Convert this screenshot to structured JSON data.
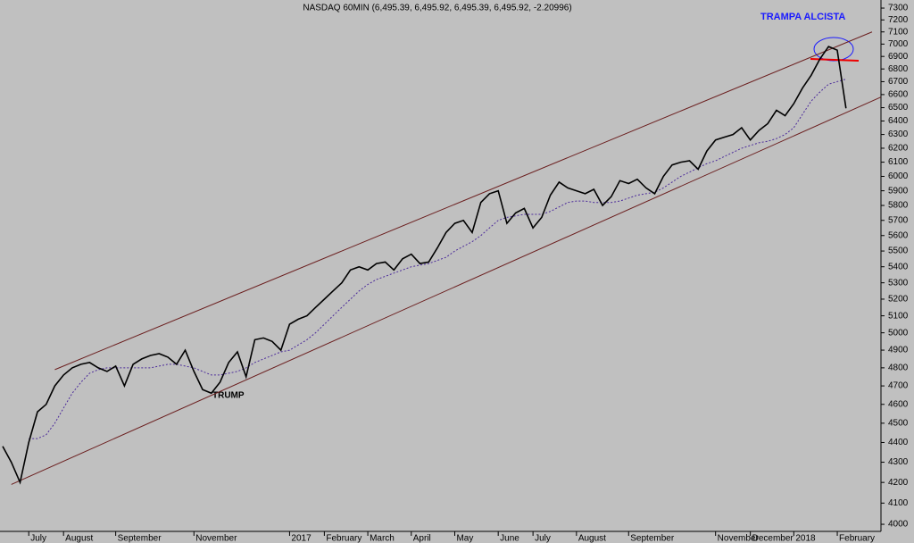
{
  "chart_data": {
    "type": "line",
    "title": "NASDAQ 60MIN (6,495.39, 6,495.92, 6,495.39, 6,495.92, -2.20996)",
    "annotations": [
      "TRAMPA ALCISTA",
      "TRUMP"
    ],
    "log_scale": true,
    "ylim": [
      3967,
      7369
    ],
    "yticks": [
      4000,
      4100,
      4200,
      4300,
      4400,
      4500,
      4600,
      4700,
      4800,
      4900,
      5000,
      5100,
      5200,
      5300,
      5400,
      5500,
      5600,
      5700,
      5800,
      5900,
      6000,
      6100,
      6200,
      6300,
      6400,
      6500,
      6600,
      6700,
      6800,
      6900,
      7000,
      7100,
      7200,
      7300
    ],
    "categories": [
      null,
      null,
      null,
      "July",
      null,
      null,
      null,
      "August",
      null,
      null,
      null,
      null,
      null,
      "September",
      null,
      null,
      null,
      null,
      null,
      null,
      null,
      null,
      "November",
      null,
      null,
      null,
      null,
      null,
      null,
      null,
      null,
      null,
      null,
      "2017",
      null,
      null,
      null,
      "February",
      null,
      null,
      null,
      null,
      "March",
      null,
      null,
      null,
      null,
      "April",
      null,
      null,
      null,
      null,
      "May",
      null,
      null,
      null,
      null,
      "June",
      null,
      null,
      null,
      "July",
      null,
      null,
      null,
      null,
      "August",
      null,
      null,
      null,
      null,
      null,
      "September",
      null,
      null,
      null,
      null,
      null,
      null,
      null,
      null,
      null,
      "November",
      null,
      null,
      null,
      "December",
      null,
      null,
      null,
      null,
      "2018",
      null,
      null,
      null,
      null,
      "February",
      null
    ],
    "series": [
      {
        "name": "NASDAQ",
        "color": "#000000",
        "values": [
          4380,
          4300,
          4200,
          4400,
          4560,
          4600,
          4700,
          4760,
          4800,
          4820,
          4830,
          4800,
          4780,
          4810,
          4700,
          4820,
          4850,
          4870,
          4880,
          4860,
          4820,
          4900,
          4780,
          4680,
          4660,
          4720,
          4830,
          4890,
          4750,
          4960,
          4970,
          4950,
          4900,
          5050,
          5080,
          5100,
          5150,
          5200,
          5250,
          5300,
          5380,
          5400,
          5380,
          5420,
          5430,
          5380,
          5450,
          5480,
          5420,
          5430,
          5520,
          5620,
          5680,
          5700,
          5620,
          5820,
          5880,
          5900,
          5680,
          5750,
          5780,
          5650,
          5720,
          5870,
          5960,
          5920,
          5900,
          5880,
          5910,
          5800,
          5860,
          5970,
          5950,
          5980,
          5920,
          5880,
          6000,
          6080,
          6100,
          6110,
          6050,
          6180,
          6260,
          6280,
          6300,
          6350,
          6260,
          6330,
          6380,
          6480,
          6440,
          6530,
          6650,
          6750,
          6880,
          6980,
          6950,
          6495.92
        ]
      },
      {
        "name": "MA",
        "color": "#4b2a9a",
        "dashed": true,
        "values": [
          null,
          null,
          null,
          4420,
          4420,
          4440,
          4500,
          4580,
          4660,
          4720,
          4770,
          4790,
          4800,
          4800,
          4800,
          4800,
          4800,
          4800,
          4810,
          4820,
          4820,
          4810,
          4800,
          4780,
          4760,
          4760,
          4770,
          4780,
          4800,
          4830,
          4850,
          4870,
          4890,
          4900,
          4930,
          4960,
          5000,
          5050,
          5100,
          5150,
          5200,
          5250,
          5290,
          5320,
          5340,
          5360,
          5380,
          5400,
          5410,
          5420,
          5440,
          5460,
          5500,
          5530,
          5560,
          5600,
          5650,
          5700,
          5720,
          5730,
          5740,
          5740,
          5740,
          5760,
          5790,
          5820,
          5830,
          5830,
          5820,
          5820,
          5820,
          5830,
          5850,
          5870,
          5880,
          5890,
          5920,
          5960,
          6000,
          6030,
          6060,
          6090,
          6110,
          6140,
          6170,
          6200,
          6220,
          6240,
          6250,
          6270,
          6300,
          6350,
          6450,
          6550,
          6620,
          6680,
          6700,
          6720
        ]
      }
    ],
    "trendlines": [
      {
        "color": "#6b1f1f",
        "index": [
          6,
          100
        ],
        "values": [
          4790,
          7100
        ]
      },
      {
        "color": "#6b1f1f",
        "index": [
          1,
          101
        ],
        "values": [
          4190,
          6580
        ]
      }
    ]
  }
}
